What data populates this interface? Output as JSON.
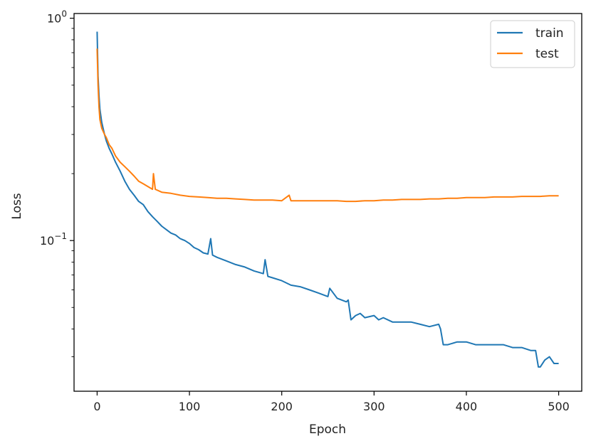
{
  "chart_data": {
    "type": "line",
    "title": "",
    "xlabel": "Epoch",
    "ylabel": "Loss",
    "xlim": [
      -25,
      525
    ],
    "ylim": [
      0.021,
      1.05
    ],
    "yscale": "log",
    "grid": false,
    "legend_position": "top-right",
    "x_ticks": [
      0,
      100,
      200,
      300,
      400,
      500
    ],
    "x_tick_labels": [
      "0",
      "100",
      "200",
      "300",
      "400",
      "500"
    ],
    "y_major_ticks": [
      0.1,
      1
    ],
    "y_tick_labels": [
      {
        "value": 0.1,
        "base": "10",
        "exp": "−1"
      },
      {
        "value": 1,
        "base": "10",
        "exp": "0"
      }
    ],
    "series": [
      {
        "name": "train",
        "color": "#1f77b4",
        "points": [
          [
            0,
            0.87
          ],
          [
            1,
            0.55
          ],
          [
            2,
            0.45
          ],
          [
            3,
            0.39
          ],
          [
            5,
            0.34
          ],
          [
            8,
            0.3
          ],
          [
            10,
            0.28
          ],
          [
            13,
            0.26
          ],
          [
            16,
            0.245
          ],
          [
            20,
            0.225
          ],
          [
            25,
            0.205
          ],
          [
            30,
            0.185
          ],
          [
            35,
            0.17
          ],
          [
            40,
            0.16
          ],
          [
            45,
            0.15
          ],
          [
            50,
            0.145
          ],
          [
            55,
            0.135
          ],
          [
            60,
            0.128
          ],
          [
            65,
            0.122
          ],
          [
            70,
            0.116
          ],
          [
            75,
            0.112
          ],
          [
            80,
            0.108
          ],
          [
            85,
            0.106
          ],
          [
            90,
            0.102
          ],
          [
            95,
            0.1
          ],
          [
            100,
            0.097
          ],
          [
            105,
            0.093
          ],
          [
            110,
            0.091
          ],
          [
            115,
            0.088
          ],
          [
            120,
            0.087
          ],
          [
            123,
            0.102
          ],
          [
            125,
            0.086
          ],
          [
            130,
            0.084
          ],
          [
            140,
            0.081
          ],
          [
            150,
            0.078
          ],
          [
            160,
            0.076
          ],
          [
            170,
            0.073
          ],
          [
            180,
            0.071
          ],
          [
            182,
            0.082
          ],
          [
            185,
            0.069
          ],
          [
            190,
            0.068
          ],
          [
            200,
            0.066
          ],
          [
            210,
            0.063
          ],
          [
            220,
            0.062
          ],
          [
            230,
            0.06
          ],
          [
            240,
            0.058
          ],
          [
            250,
            0.056
          ],
          [
            252,
            0.061
          ],
          [
            260,
            0.055
          ],
          [
            270,
            0.053
          ],
          [
            272,
            0.054
          ],
          [
            275,
            0.044
          ],
          [
            280,
            0.046
          ],
          [
            285,
            0.047
          ],
          [
            290,
            0.045
          ],
          [
            300,
            0.046
          ],
          [
            305,
            0.044
          ],
          [
            310,
            0.045
          ],
          [
            320,
            0.043
          ],
          [
            330,
            0.043
          ],
          [
            340,
            0.043
          ],
          [
            350,
            0.042
          ],
          [
            360,
            0.041
          ],
          [
            370,
            0.042
          ],
          [
            372,
            0.04
          ],
          [
            375,
            0.034
          ],
          [
            380,
            0.034
          ],
          [
            390,
            0.035
          ],
          [
            400,
            0.035
          ],
          [
            410,
            0.034
          ],
          [
            420,
            0.034
          ],
          [
            430,
            0.034
          ],
          [
            440,
            0.034
          ],
          [
            450,
            0.033
          ],
          [
            460,
            0.033
          ],
          [
            470,
            0.032
          ],
          [
            475,
            0.032
          ],
          [
            478,
            0.027
          ],
          [
            480,
            0.027
          ],
          [
            485,
            0.029
          ],
          [
            490,
            0.03
          ],
          [
            495,
            0.028
          ],
          [
            500,
            0.028
          ]
        ]
      },
      {
        "name": "test",
        "color": "#ff7f0e",
        "points": [
          [
            0,
            0.73
          ],
          [
            1,
            0.5
          ],
          [
            2,
            0.4
          ],
          [
            3,
            0.35
          ],
          [
            5,
            0.32
          ],
          [
            8,
            0.3
          ],
          [
            10,
            0.29
          ],
          [
            13,
            0.27
          ],
          [
            16,
            0.26
          ],
          [
            20,
            0.24
          ],
          [
            25,
            0.225
          ],
          [
            30,
            0.215
          ],
          [
            35,
            0.205
          ],
          [
            40,
            0.195
          ],
          [
            45,
            0.185
          ],
          [
            50,
            0.18
          ],
          [
            55,
            0.175
          ],
          [
            60,
            0.17
          ],
          [
            61,
            0.2
          ],
          [
            63,
            0.17
          ],
          [
            70,
            0.165
          ],
          [
            80,
            0.163
          ],
          [
            90,
            0.16
          ],
          [
            100,
            0.158
          ],
          [
            110,
            0.157
          ],
          [
            120,
            0.156
          ],
          [
            130,
            0.155
          ],
          [
            140,
            0.155
          ],
          [
            150,
            0.154
          ],
          [
            160,
            0.153
          ],
          [
            170,
            0.152
          ],
          [
            180,
            0.152
          ],
          [
            190,
            0.152
          ],
          [
            200,
            0.151
          ],
          [
            208,
            0.16
          ],
          [
            210,
            0.151
          ],
          [
            220,
            0.151
          ],
          [
            230,
            0.151
          ],
          [
            240,
            0.151
          ],
          [
            250,
            0.151
          ],
          [
            260,
            0.151
          ],
          [
            270,
            0.15
          ],
          [
            280,
            0.15
          ],
          [
            290,
            0.151
          ],
          [
            300,
            0.151
          ],
          [
            310,
            0.152
          ],
          [
            320,
            0.152
          ],
          [
            330,
            0.153
          ],
          [
            340,
            0.153
          ],
          [
            350,
            0.153
          ],
          [
            360,
            0.154
          ],
          [
            370,
            0.154
          ],
          [
            380,
            0.155
          ],
          [
            390,
            0.155
          ],
          [
            400,
            0.156
          ],
          [
            410,
            0.156
          ],
          [
            420,
            0.156
          ],
          [
            430,
            0.157
          ],
          [
            440,
            0.157
          ],
          [
            450,
            0.157
          ],
          [
            460,
            0.158
          ],
          [
            470,
            0.158
          ],
          [
            480,
            0.158
          ],
          [
            490,
            0.159
          ],
          [
            500,
            0.159
          ]
        ]
      }
    ]
  }
}
